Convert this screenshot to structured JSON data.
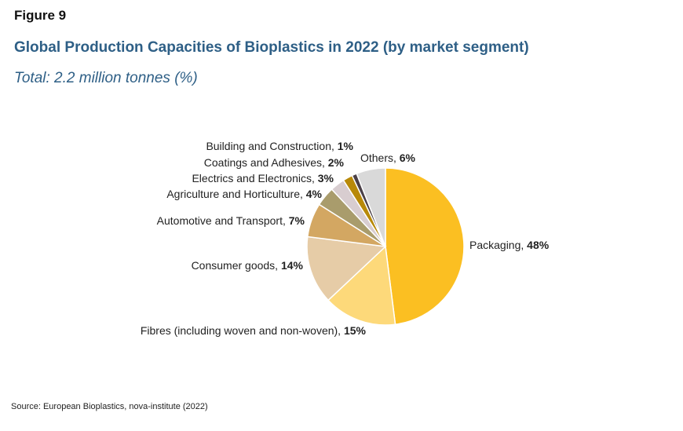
{
  "figure": {
    "label": "Figure 9"
  },
  "source": "Source: European Bioplastics, nova-institute (2022)",
  "chart_data": {
    "type": "pie",
    "title": "Global Production Capacities of Bioplastics in 2022 (by market segment)",
    "subtitle": "Total: 2.2 million tonnes (%)",
    "unit": "%",
    "start": "12 o'clock, clockwise",
    "slices": [
      {
        "label": "Packaging",
        "value": 48,
        "value_label": "48%",
        "color": "#fbbf22"
      },
      {
        "label": "Fibres (including woven and non-woven)",
        "value": 15,
        "value_label": "15%",
        "color": "#fdd97a"
      },
      {
        "label": "Consumer goods",
        "value": 14,
        "value_label": "14%",
        "color": "#e6cca7"
      },
      {
        "label": "Automotive and Transport",
        "value": 7,
        "value_label": "7%",
        "color": "#d3a762"
      },
      {
        "label": "Agriculture and Horticulture",
        "value": 4,
        "value_label": "4%",
        "color": "#a99c6c"
      },
      {
        "label": "Electrics and Electronics",
        "value": 3,
        "value_label": "3%",
        "color": "#d8cdd0"
      },
      {
        "label": "Coatings and Adhesives",
        "value": 2,
        "value_label": "2%",
        "color": "#b88909"
      },
      {
        "label": "Building and Construction",
        "value": 1,
        "value_label": "1%",
        "color": "#4b4148"
      },
      {
        "label": "Others",
        "value": 6,
        "value_label": "6%",
        "color": "#d9d9d9"
      }
    ]
  }
}
